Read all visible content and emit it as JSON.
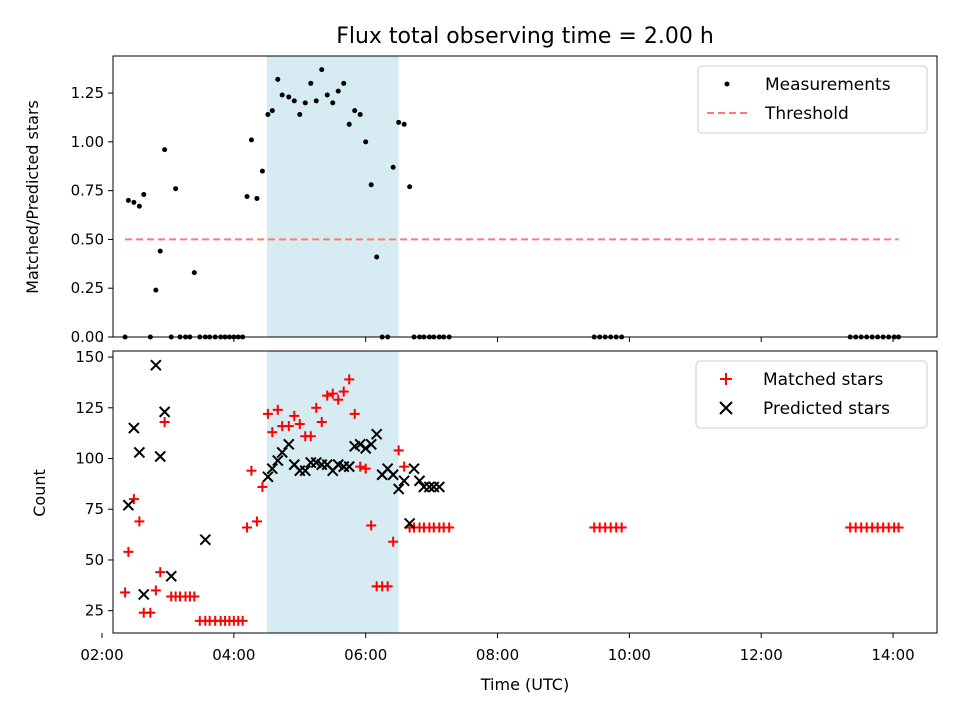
{
  "chart_data": [
    {
      "type": "scatter",
      "title": "Flux total observing time = 2.00 h",
      "ylabel": "Matched/Predicted stars",
      "xlabel": "",
      "xlim": [
        "02:10",
        "14:40"
      ],
      "ylim": [
        0,
        1.44
      ],
      "yticks": [
        0.0,
        0.25,
        0.5,
        0.75,
        1.0,
        1.25
      ],
      "ytick_labels": [
        "0.00",
        "0.25",
        "0.50",
        "0.75",
        "1.00",
        "1.25"
      ],
      "shaded_span": [
        "04:30",
        "06:30"
      ],
      "legend_position": "upper-right",
      "series": [
        {
          "name": "Measurements",
          "kind": "points",
          "color": "#000000",
          "x": [
            "02:21",
            "02:24",
            "02:29",
            "02:34",
            "02:38",
            "02:44",
            "02:49",
            "02:53",
            "02:57",
            "03:03",
            "03:07",
            "03:11",
            "03:16",
            "03:20",
            "03:24",
            "03:29",
            "03:34",
            "03:38",
            "03:43",
            "03:48",
            "03:52",
            "03:56",
            "04:00",
            "04:04",
            "04:08",
            "04:12",
            "04:16",
            "04:21",
            "04:26",
            "04:31",
            "04:35",
            "04:40",
            "04:44",
            "04:50",
            "04:55",
            "05:00",
            "05:05",
            "05:10",
            "05:15",
            "05:20",
            "05:25",
            "05:30",
            "05:35",
            "05:40",
            "05:45",
            "05:50",
            "05:55",
            "06:00",
            "06:05",
            "06:10",
            "06:15",
            "06:20",
            "06:25",
            "06:30",
            "06:35",
            "06:40",
            "06:44",
            "06:49",
            "06:53",
            "06:58",
            "07:02",
            "07:07",
            "07:11",
            "07:16",
            "09:28",
            "09:33",
            "09:38",
            "09:43",
            "09:48",
            "09:53",
            "13:21",
            "13:26",
            "13:31",
            "13:36",
            "13:41",
            "13:46",
            "13:51",
            "13:56",
            "14:01",
            "14:05"
          ],
          "y": [
            0.0,
            0.7,
            0.69,
            0.67,
            0.73,
            0.0,
            0.24,
            0.44,
            0.96,
            0.0,
            0.76,
            0.0,
            0.0,
            0.0,
            0.33,
            0.0,
            0.0,
            0.0,
            0.0,
            0.0,
            0.0,
            0.0,
            0.0,
            0.0,
            0.0,
            0.72,
            1.01,
            0.71,
            0.85,
            1.14,
            1.16,
            1.32,
            1.24,
            1.23,
            1.21,
            1.14,
            1.2,
            1.3,
            1.21,
            1.37,
            1.24,
            1.2,
            1.26,
            1.3,
            1.09,
            1.16,
            1.14,
            1.0,
            0.78,
            0.41,
            0.0,
            0.0,
            0.87,
            1.1,
            1.09,
            0.77,
            0.0,
            0.0,
            0.0,
            0.0,
            0.0,
            0.0,
            0.0,
            0.0,
            0.0,
            0.0,
            0.0,
            0.0,
            0.0,
            0.0,
            0.0,
            0.0,
            0.0,
            0.0,
            0.0,
            0.0,
            0.0,
            0.0,
            0.0,
            0.0
          ]
        },
        {
          "name": "Threshold",
          "kind": "dashed-line",
          "color": "#ff7777",
          "x": [
            "02:21",
            "14:05"
          ],
          "y": [
            0.5,
            0.5
          ]
        }
      ]
    },
    {
      "type": "scatter",
      "title": "",
      "xlabel": "Time (UTC)",
      "ylabel": "Count",
      "xlim": [
        "02:10",
        "14:40"
      ],
      "ylim": [
        14,
        153
      ],
      "xticks": [
        "02:00",
        "04:00",
        "06:00",
        "08:00",
        "10:00",
        "12:00",
        "14:00"
      ],
      "yticks": [
        25,
        50,
        75,
        100,
        125,
        150
      ],
      "ytick_labels": [
        "25",
        "50",
        "75",
        "100",
        "125",
        "150"
      ],
      "shaded_span": [
        "04:30",
        "06:30"
      ],
      "legend_position": "upper-right",
      "series": [
        {
          "name": "Matched stars",
          "marker": "plus",
          "color": "#ff0000",
          "x": [
            "02:21",
            "02:24",
            "02:29",
            "02:34",
            "02:38",
            "02:44",
            "02:49",
            "02:53",
            "02:57",
            "03:03",
            "03:07",
            "03:11",
            "03:16",
            "03:20",
            "03:24",
            "03:29",
            "03:34",
            "03:38",
            "03:43",
            "03:48",
            "03:52",
            "03:56",
            "04:00",
            "04:04",
            "04:08",
            "04:12",
            "04:16",
            "04:21",
            "04:26",
            "04:31",
            "04:35",
            "04:40",
            "04:44",
            "04:50",
            "04:55",
            "05:00",
            "05:05",
            "05:10",
            "05:15",
            "05:20",
            "05:25",
            "05:30",
            "05:35",
            "05:40",
            "05:45",
            "05:50",
            "05:55",
            "06:00",
            "06:05",
            "06:10",
            "06:15",
            "06:20",
            "06:25",
            "06:30",
            "06:35",
            "06:40",
            "06:44",
            "06:49",
            "06:53",
            "06:58",
            "07:02",
            "07:07",
            "07:11",
            "07:16",
            "09:28",
            "09:33",
            "09:38",
            "09:43",
            "09:48",
            "09:53",
            "13:21",
            "13:26",
            "13:31",
            "13:36",
            "13:41",
            "13:46",
            "13:51",
            "13:56",
            "14:01",
            "14:05"
          ],
          "y": [
            34,
            54,
            80,
            69,
            24,
            24,
            35,
            44,
            118,
            32,
            32,
            32,
            32,
            32,
            32,
            20,
            20,
            20,
            20,
            20,
            20,
            20,
            20,
            20,
            20,
            66,
            94,
            69,
            86,
            122,
            113,
            124,
            116,
            116,
            121,
            117,
            111,
            111,
            125,
            118,
            131,
            132,
            129,
            133,
            139,
            122,
            96,
            95,
            67,
            37,
            37,
            37,
            59,
            104,
            96,
            66,
            66,
            66,
            66,
            66,
            66,
            66,
            66,
            66,
            66,
            66,
            66,
            66,
            66,
            66,
            66,
            66,
            66,
            66,
            66,
            66,
            66,
            66,
            66,
            66
          ]
        },
        {
          "name": "Predicted stars",
          "marker": "x",
          "color": "#000000",
          "x": [
            "02:24",
            "02:29",
            "02:34",
            "02:38",
            "02:49",
            "02:53",
            "02:57",
            "03:03",
            "03:34",
            "04:31",
            "04:35",
            "04:40",
            "04:44",
            "04:50",
            "04:55",
            "05:00",
            "05:05",
            "05:10",
            "05:15",
            "05:20",
            "05:25",
            "05:30",
            "05:35",
            "05:40",
            "05:45",
            "05:50",
            "05:55",
            "06:00",
            "06:05",
            "06:10",
            "06:15",
            "06:20",
            "06:25",
            "06:30",
            "06:35",
            "06:40",
            "06:44",
            "06:49",
            "06:53",
            "06:58",
            "07:02",
            "07:07"
          ],
          "y": [
            77,
            115,
            103,
            33,
            146,
            101,
            123,
            42,
            60,
            91,
            95,
            99,
            103,
            107,
            97,
            94,
            94,
            98,
            98,
            97,
            97,
            94,
            97,
            96,
            96,
            106,
            107,
            105,
            107,
            112,
            92,
            95,
            92,
            85,
            89,
            68,
            95,
            89,
            86,
            86,
            86,
            86
          ]
        }
      ]
    }
  ]
}
